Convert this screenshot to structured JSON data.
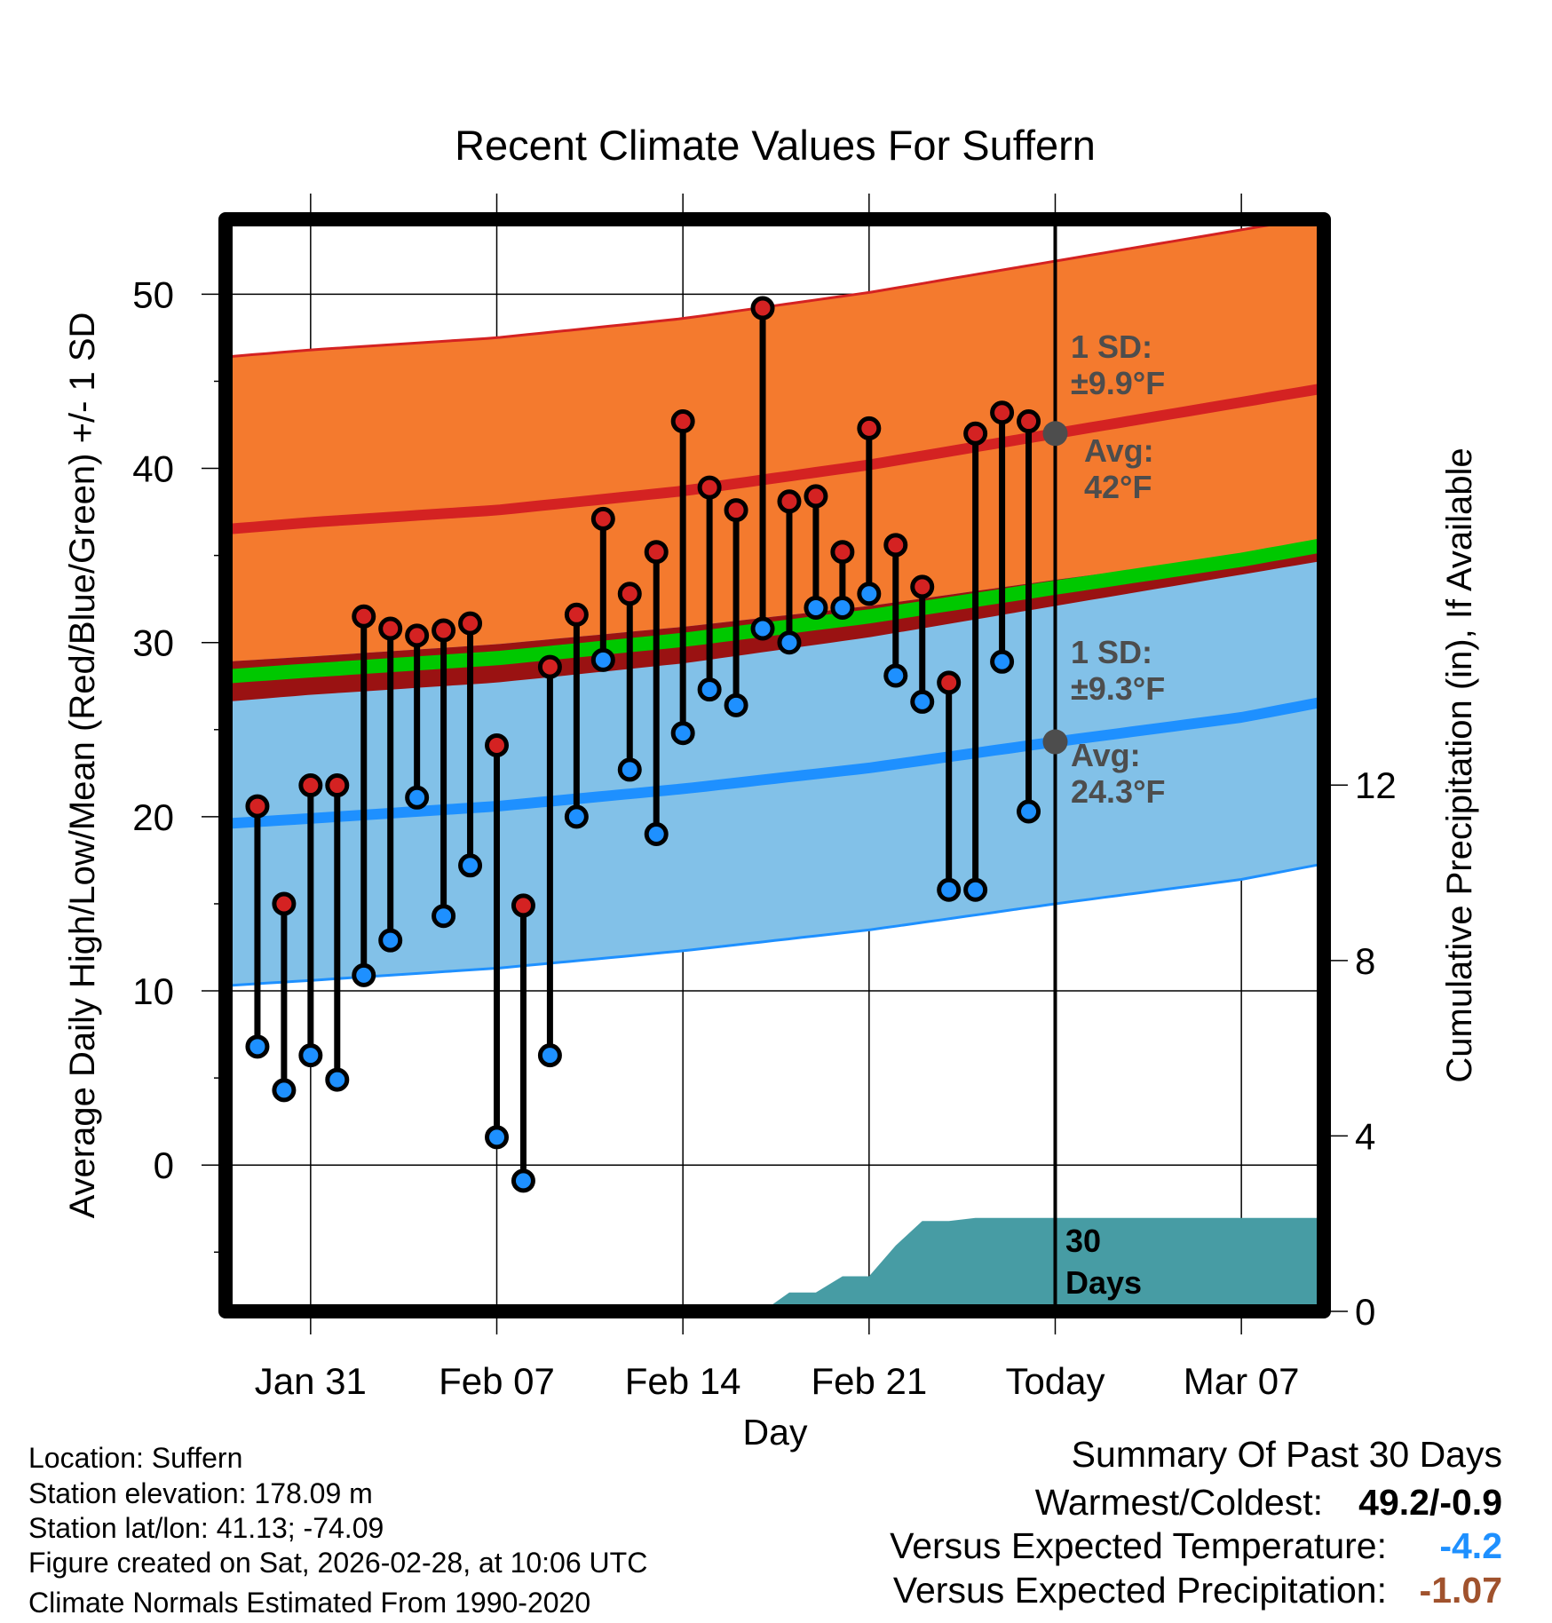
{
  "chart_data": {
    "type": "line",
    "title": "Recent Climate Values For Suffern",
    "xlabel": "Day",
    "ylabel": "Average Daily High/Low/Mean (Red/Blue/Green) +/- 1 SD",
    "y2label": "Cumulative Precipitation (in), If Available",
    "xlim_days": [
      -1.2,
      40.1
    ],
    "ylim": [
      -8.4,
      54.3
    ],
    "y2lim": [
      0,
      24.9
    ],
    "y_ticks": [
      0,
      10,
      20,
      30,
      40,
      50
    ],
    "y2_ticks": [
      0,
      4,
      8,
      12
    ],
    "x_ticks": [
      {
        "label": "Jan 31",
        "day": 2
      },
      {
        "label": "Feb 07",
        "day": 9
      },
      {
        "label": "Feb 14",
        "day": 16
      },
      {
        "label": "Feb 21",
        "day": 23
      },
      {
        "label": "Today",
        "day": 30
      },
      {
        "label": "Mar 07",
        "day": 37
      }
    ],
    "today_day": 30,
    "observations": {
      "dates": [
        "Jan 29",
        "Jan 30",
        "Jan 31",
        "Feb 01",
        "Feb 02",
        "Feb 03",
        "Feb 04",
        "Feb 05",
        "Feb 06",
        "Feb 07",
        "Feb 08",
        "Feb 09",
        "Feb 10",
        "Feb 11",
        "Feb 12",
        "Feb 13",
        "Feb 14",
        "Feb 15",
        "Feb 16",
        "Feb 17",
        "Feb 18",
        "Feb 19",
        "Feb 20",
        "Feb 21",
        "Feb 22",
        "Feb 23",
        "Feb 24",
        "Feb 25",
        "Feb 26",
        "Feb 27"
      ],
      "high": [
        20.6,
        15.0,
        21.8,
        21.8,
        31.5,
        30.8,
        30.4,
        30.7,
        31.1,
        24.1,
        14.9,
        28.6,
        31.6,
        37.1,
        32.8,
        35.2,
        42.7,
        38.9,
        37.6,
        49.2,
        38.1,
        38.4,
        35.2,
        42.3,
        35.6,
        33.2,
        27.7,
        42.0,
        43.2,
        42.7
      ],
      "low": [
        6.8,
        4.3,
        6.3,
        4.9,
        10.9,
        12.9,
        21.1,
        14.3,
        17.2,
        1.6,
        -0.9,
        6.3,
        20.0,
        29.0,
        22.7,
        19.0,
        24.8,
        27.3,
        26.4,
        30.8,
        30.0,
        32.0,
        32.0,
        32.8,
        28.1,
        26.6,
        15.8,
        15.8,
        28.9,
        20.3
      ],
      "cumulative_precip": [
        0,
        0,
        0,
        0,
        0,
        0,
        0,
        0,
        0,
        0,
        0,
        0,
        0,
        0,
        0,
        0,
        0,
        0,
        0,
        0,
        0.43,
        0.43,
        0.8,
        0.8,
        1.5,
        2.06,
        2.06,
        2.13,
        2.13,
        2.13
      ]
    },
    "normals": {
      "days": [
        -1.2,
        2,
        9,
        16,
        23,
        30,
        37,
        40.1
      ],
      "high_mean": [
        36.5,
        36.9,
        37.6,
        38.7,
        40.2,
        42.0,
        43.8,
        44.6
      ],
      "low_mean": [
        19.6,
        19.9,
        20.6,
        21.6,
        22.8,
        24.3,
        25.7,
        26.6
      ],
      "high_sd": 9.9,
      "low_sd": 9.3
    },
    "annotations": {
      "high_sd_label": "1 SD:",
      "high_sd_value": "±9.9°F",
      "high_avg_label": "Avg:",
      "high_avg_value": "42°F",
      "low_sd_label": "1 SD:",
      "low_sd_value": "±9.3°F",
      "low_avg_label": "Avg:",
      "low_avg_value": "24.3°F",
      "precip_label_1": "30",
      "precip_label_2": "Days"
    },
    "colors": {
      "high_band": "#f47a2e",
      "high_line": "#d42222",
      "low_band": "#82c1e8",
      "low_line": "#1e90ff",
      "mean_line": "#00c800",
      "overlap": "#9a1212",
      "precip": "#479ca4",
      "high_marker": "#d42222",
      "low_marker": "#1e90ff",
      "annotation": "#4d4d4d"
    }
  },
  "info": {
    "location": "Location: Suffern",
    "elevation": "Station elevation: 178.09 m",
    "latlon": "Station lat/lon: 41.13; -74.09",
    "created": "Figure created on Sat, 2026-02-28, at 10:06 UTC",
    "normals": "Climate Normals Estimated From 1990-2020"
  },
  "summary": {
    "title": "Summary Of Past 30 Days",
    "warmest_coldest_label": "Warmest/Coldest:",
    "warmest_coldest_value": "49.2/-0.9",
    "temp_label": "Versus Expected Temperature:",
    "temp_value": "-4.2",
    "temp_color": "#1e90ff",
    "precip_label": "Versus Expected Precipitation:",
    "precip_value": "-1.07",
    "precip_color": "#a0522d"
  }
}
